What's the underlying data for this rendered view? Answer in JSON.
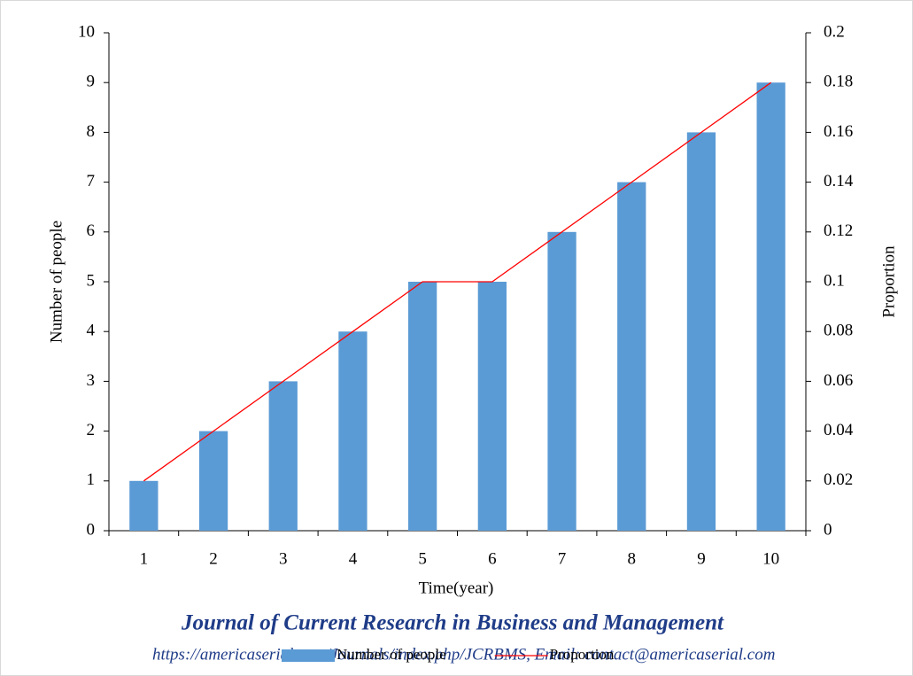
{
  "chart_data": {
    "type": "bar-line",
    "x_label": "Time(year)",
    "y_label": "Number of people",
    "y2_label": "Proportion",
    "categories": [
      "1",
      "2",
      "3",
      "4",
      "5",
      "6",
      "7",
      "8",
      "9",
      "10"
    ],
    "series": [
      {
        "name": "Number of people",
        "type": "bar",
        "color": "#5b9bd5",
        "values": [
          1,
          2,
          3,
          4,
          5,
          5,
          6,
          7,
          8,
          9
        ]
      },
      {
        "name": "Proportion",
        "type": "line",
        "axis": "y2",
        "color": "#ff0000",
        "values": [
          0.02,
          0.04,
          0.06,
          0.08,
          0.1,
          0.1,
          0.12,
          0.14,
          0.16,
          0.18
        ]
      }
    ],
    "ylim": [
      0,
      10
    ],
    "yticks": [
      0,
      1,
      2,
      3,
      4,
      5,
      6,
      7,
      8,
      9,
      10
    ],
    "y2lim": [
      0,
      0.2
    ],
    "y2ticks": [
      0,
      0.02,
      0.04,
      0.06,
      0.08,
      0.1,
      0.12,
      0.14,
      0.16,
      0.18,
      0.2
    ],
    "legend": "bottom",
    "annotations": [
      "Journal of Current Research in Business and Management",
      "https://americaserial.com/Journals/index.php/JCRBMS, Email: contact@americaserial.com"
    ]
  }
}
